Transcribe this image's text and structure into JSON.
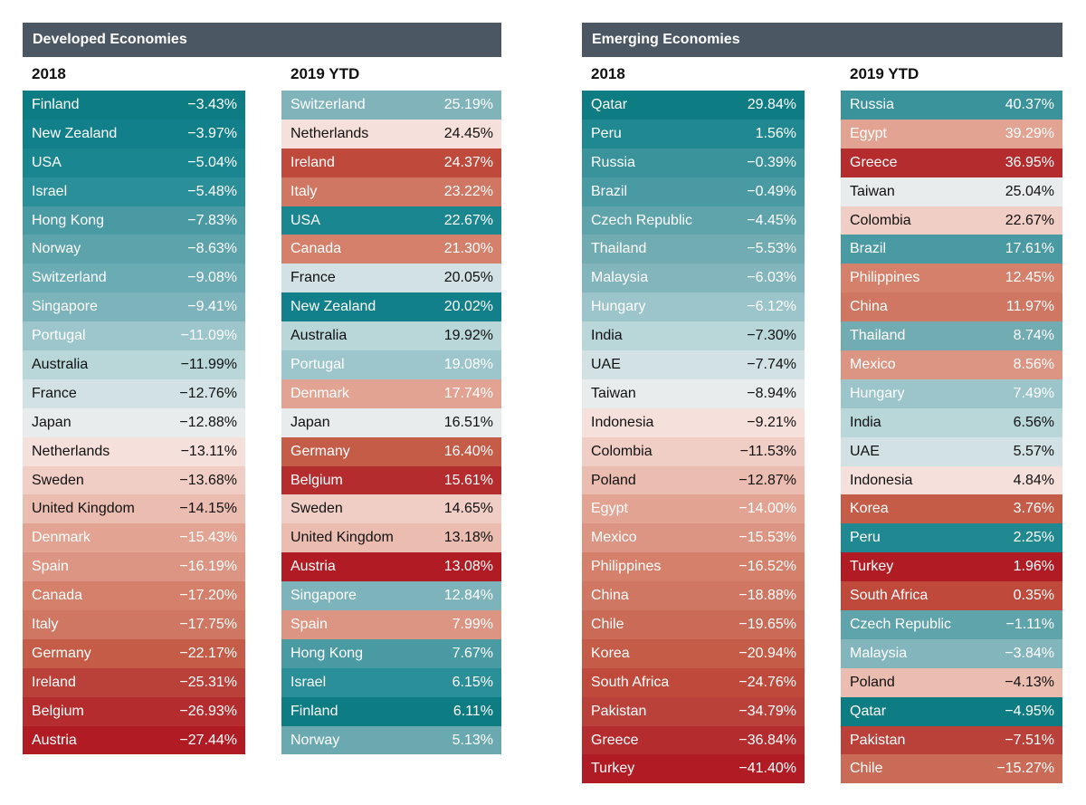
{
  "panels": [
    {
      "title": "Developed Economies",
      "tables": [
        {
          "title": "2018",
          "rows": [
            {
              "name": "Finland",
              "value": "−3.43%",
              "color": "#0e7d83",
              "text": "light"
            },
            {
              "name": "New Zealand",
              "value": "−3.97%",
              "color": "#11808a",
              "text": "light"
            },
            {
              "name": "USA",
              "value": "−5.04%",
              "color": "#1a8690",
              "text": "light"
            },
            {
              "name": "Israel",
              "value": "−5.48%",
              "color": "#2a8f99",
              "text": "light"
            },
            {
              "name": "Hong Kong",
              "value": "−7.83%",
              "color": "#4a9aa4",
              "text": "light"
            },
            {
              "name": "Norway",
              "value": "−8.63%",
              "color": "#5da3ac",
              "text": "light"
            },
            {
              "name": "Switzerland",
              "value": "−9.08%",
              "color": "#6babb3",
              "text": "light"
            },
            {
              "name": "Singapore",
              "value": "−9.41%",
              "color": "#7db3ba",
              "text": "light"
            },
            {
              "name": "Portugal",
              "value": "−11.09%",
              "color": "#9cc6cb",
              "text": "light"
            },
            {
              "name": "Australia",
              "value": "−11.99%",
              "color": "#b9d6d9",
              "text": "dark"
            },
            {
              "name": "France",
              "value": "−12.76%",
              "color": "#d2e2e4",
              "text": "dark"
            },
            {
              "name": "Japan",
              "value": "−12.88%",
              "color": "#e8eced",
              "text": "dark"
            },
            {
              "name": "Netherlands",
              "value": "−13.11%",
              "color": "#f6e0db",
              "text": "dark"
            },
            {
              "name": "Sweden",
              "value": "−13.68%",
              "color": "#f1cec5",
              "text": "dark"
            },
            {
              "name": "United Kingdom",
              "value": "−14.15%",
              "color": "#ebbdb1",
              "text": "dark"
            },
            {
              "name": "Denmark",
              "value": "−15.43%",
              "color": "#e2a392",
              "text": "light"
            },
            {
              "name": "Spain",
              "value": "−16.19%",
              "color": "#dc9582",
              "text": "light"
            },
            {
              "name": "Canada",
              "value": "−17.20%",
              "color": "#d4806b",
              "text": "light"
            },
            {
              "name": "Italy",
              "value": "−17.75%",
              "color": "#cf7762",
              "text": "light"
            },
            {
              "name": "Germany",
              "value": "−22.17%",
              "color": "#c45c47",
              "text": "light"
            },
            {
              "name": "Ireland",
              "value": "−25.31%",
              "color": "#b9413a",
              "text": "light"
            },
            {
              "name": "Belgium",
              "value": "−26.93%",
              "color": "#b42c2d",
              "text": "light"
            },
            {
              "name": "Austria",
              "value": "−27.44%",
              "color": "#b11c24",
              "text": "light"
            }
          ]
        },
        {
          "title": "2019 YTD",
          "rows": [
            {
              "name": "Switzerland",
              "value": "25.19%",
              "color": "#80b4ba",
              "text": "light"
            },
            {
              "name": "Netherlands",
              "value": "24.45%",
              "color": "#f6e0db",
              "text": "dark"
            },
            {
              "name": "Ireland",
              "value": "24.37%",
              "color": "#bf4a3c",
              "text": "light"
            },
            {
              "name": "Italy",
              "value": "23.22%",
              "color": "#cf7762",
              "text": "light"
            },
            {
              "name": "USA",
              "value": "22.67%",
              "color": "#1a8690",
              "text": "light"
            },
            {
              "name": "Canada",
              "value": "21.30%",
              "color": "#d4806b",
              "text": "light"
            },
            {
              "name": "France",
              "value": "20.05%",
              "color": "#d2e2e4",
              "text": "dark"
            },
            {
              "name": "New Zealand",
              "value": "20.02%",
              "color": "#11808a",
              "text": "light"
            },
            {
              "name": "Australia",
              "value": "19.92%",
              "color": "#b9d6d9",
              "text": "dark"
            },
            {
              "name": "Portugal",
              "value": "19.08%",
              "color": "#9cc6cb",
              "text": "light"
            },
            {
              "name": "Denmark",
              "value": "17.74%",
              "color": "#e2a392",
              "text": "light"
            },
            {
              "name": "Japan",
              "value": "16.51%",
              "color": "#e8eced",
              "text": "dark"
            },
            {
              "name": "Germany",
              "value": "16.40%",
              "color": "#c45c47",
              "text": "light"
            },
            {
              "name": "Belgium",
              "value": "15.61%",
              "color": "#b42c2d",
              "text": "light"
            },
            {
              "name": "Sweden",
              "value": "14.65%",
              "color": "#f1cec5",
              "text": "dark"
            },
            {
              "name": "United Kingdom",
              "value": "13.18%",
              "color": "#ebbdb1",
              "text": "dark"
            },
            {
              "name": "Austria",
              "value": "13.08%",
              "color": "#b11c24",
              "text": "light"
            },
            {
              "name": "Singapore",
              "value": "12.84%",
              "color": "#7db3ba",
              "text": "light"
            },
            {
              "name": "Spain",
              "value": "7.99%",
              "color": "#dc9582",
              "text": "light"
            },
            {
              "name": "Hong Kong",
              "value": "7.67%",
              "color": "#4a9aa4",
              "text": "light"
            },
            {
              "name": "Israel",
              "value": "6.15%",
              "color": "#2a8f99",
              "text": "light"
            },
            {
              "name": "Finland",
              "value": "6.11%",
              "color": "#0e7d83",
              "text": "light"
            },
            {
              "name": "Norway",
              "value": "5.13%",
              "color": "#6ba9b1",
              "text": "light"
            }
          ]
        }
      ]
    },
    {
      "title": "Emerging Economies",
      "tables": [
        {
          "title": "2018",
          "rows": [
            {
              "name": "Qatar",
              "value": "29.84%",
              "color": "#0e7d83",
              "text": "light"
            },
            {
              "name": "Peru",
              "value": "1.56%",
              "color": "#1f8891",
              "text": "light"
            },
            {
              "name": "Russia",
              "value": "−0.39%",
              "color": "#3a929b",
              "text": "light"
            },
            {
              "name": "Brazil",
              "value": "−0.49%",
              "color": "#4a9aa4",
              "text": "light"
            },
            {
              "name": "Czech Republic",
              "value": "−4.45%",
              "color": "#5fa3ab",
              "text": "light"
            },
            {
              "name": "Thailand",
              "value": "−5.53%",
              "color": "#72acb3",
              "text": "light"
            },
            {
              "name": "Malaysia",
              "value": "−6.03%",
              "color": "#83b6bc",
              "text": "light"
            },
            {
              "name": "Hungary",
              "value": "−6.12%",
              "color": "#9bc5ca",
              "text": "light"
            },
            {
              "name": "India",
              "value": "−7.30%",
              "color": "#b9d6d9",
              "text": "dark"
            },
            {
              "name": "UAE",
              "value": "−7.74%",
              "color": "#d2e2e4",
              "text": "dark"
            },
            {
              "name": "Taiwan",
              "value": "−8.94%",
              "color": "#e8eced",
              "text": "dark"
            },
            {
              "name": "Indonesia",
              "value": "−9.21%",
              "color": "#f6e0db",
              "text": "dark"
            },
            {
              "name": "Colombia",
              "value": "−11.53%",
              "color": "#f1cec5",
              "text": "dark"
            },
            {
              "name": "Poland",
              "value": "−12.87%",
              "color": "#ebbdb1",
              "text": "dark"
            },
            {
              "name": "Egypt",
              "value": "−14.00%",
              "color": "#e2a392",
              "text": "light"
            },
            {
              "name": "Mexico",
              "value": "−15.53%",
              "color": "#dc9582",
              "text": "light"
            },
            {
              "name": "Philippines",
              "value": "−16.52%",
              "color": "#d4806b",
              "text": "light"
            },
            {
              "name": "China",
              "value": "−18.88%",
              "color": "#cf7762",
              "text": "light"
            },
            {
              "name": "Chile",
              "value": "−19.65%",
              "color": "#c96b56",
              "text": "light"
            },
            {
              "name": "Korea",
              "value": "−20.94%",
              "color": "#c45c47",
              "text": "light"
            },
            {
              "name": "South Africa",
              "value": "−24.76%",
              "color": "#bf4a3c",
              "text": "light"
            },
            {
              "name": "Pakistan",
              "value": "−34.79%",
              "color": "#b9413a",
              "text": "light"
            },
            {
              "name": "Greece",
              "value": "−36.84%",
              "color": "#b42c2d",
              "text": "light"
            },
            {
              "name": "Turkey",
              "value": "−41.40%",
              "color": "#b11c24",
              "text": "light"
            }
          ]
        },
        {
          "title": "2019 YTD",
          "rows": [
            {
              "name": "Russia",
              "value": "40.37%",
              "color": "#3a929b",
              "text": "light"
            },
            {
              "name": "Egypt",
              "value": "39.29%",
              "color": "#e2a392",
              "text": "light"
            },
            {
              "name": "Greece",
              "value": "36.95%",
              "color": "#b42c2d",
              "text": "light"
            },
            {
              "name": "Taiwan",
              "value": "25.04%",
              "color": "#e8eced",
              "text": "dark"
            },
            {
              "name": "Colombia",
              "value": "22.67%",
              "color": "#f1cec5",
              "text": "dark"
            },
            {
              "name": "Brazil",
              "value": "17.61%",
              "color": "#4a9aa4",
              "text": "light"
            },
            {
              "name": "Philippines",
              "value": "12.45%",
              "color": "#d4806b",
              "text": "light"
            },
            {
              "name": "China",
              "value": "11.97%",
              "color": "#cf7762",
              "text": "light"
            },
            {
              "name": "Thailand",
              "value": "8.74%",
              "color": "#72acb3",
              "text": "light"
            },
            {
              "name": "Mexico",
              "value": "8.56%",
              "color": "#dc9582",
              "text": "light"
            },
            {
              "name": "Hungary",
              "value": "7.49%",
              "color": "#9bc5ca",
              "text": "light"
            },
            {
              "name": "India",
              "value": "6.56%",
              "color": "#b9d6d9",
              "text": "dark"
            },
            {
              "name": "UAE",
              "value": "5.57%",
              "color": "#d2e2e4",
              "text": "dark"
            },
            {
              "name": "Indonesia",
              "value": "4.84%",
              "color": "#f6e0db",
              "text": "dark"
            },
            {
              "name": "Korea",
              "value": "3.76%",
              "color": "#c45c47",
              "text": "light"
            },
            {
              "name": "Peru",
              "value": "2.25%",
              "color": "#1f8891",
              "text": "light"
            },
            {
              "name": "Turkey",
              "value": "1.96%",
              "color": "#b11c24",
              "text": "light"
            },
            {
              "name": "South Africa",
              "value": "0.35%",
              "color": "#bf4a3c",
              "text": "light"
            },
            {
              "name": "Czech Republic",
              "value": "−1.11%",
              "color": "#5fa3ab",
              "text": "light"
            },
            {
              "name": "Malaysia",
              "value": "−3.84%",
              "color": "#83b6bc",
              "text": "light"
            },
            {
              "name": "Poland",
              "value": "−4.13%",
              "color": "#ebbdb1",
              "text": "dark"
            },
            {
              "name": "Qatar",
              "value": "−4.95%",
              "color": "#0e7d83",
              "text": "light"
            },
            {
              "name": "Pakistan",
              "value": "−7.51%",
              "color": "#b9413a",
              "text": "light"
            },
            {
              "name": "Chile",
              "value": "−15.27%",
              "color": "#c96b56",
              "text": "light"
            }
          ]
        }
      ]
    }
  ],
  "chart_data": {
    "type": "table",
    "tables": [
      {
        "group": "Developed Economies",
        "period": "2018",
        "categories": [
          "Finland",
          "New Zealand",
          "USA",
          "Israel",
          "Hong Kong",
          "Norway",
          "Switzerland",
          "Singapore",
          "Portugal",
          "Australia",
          "France",
          "Japan",
          "Netherlands",
          "Sweden",
          "United Kingdom",
          "Denmark",
          "Spain",
          "Canada",
          "Italy",
          "Germany",
          "Ireland",
          "Belgium",
          "Austria"
        ],
        "values": [
          -3.43,
          -3.97,
          -5.04,
          -5.48,
          -7.83,
          -8.63,
          -9.08,
          -9.41,
          -11.09,
          -11.99,
          -12.76,
          -12.88,
          -13.11,
          -13.68,
          -14.15,
          -15.43,
          -16.19,
          -17.2,
          -17.75,
          -22.17,
          -25.31,
          -26.93,
          -27.44
        ]
      },
      {
        "group": "Developed Economies",
        "period": "2019 YTD",
        "categories": [
          "Switzerland",
          "Netherlands",
          "Ireland",
          "Italy",
          "USA",
          "Canada",
          "France",
          "New Zealand",
          "Australia",
          "Portugal",
          "Denmark",
          "Japan",
          "Germany",
          "Belgium",
          "Sweden",
          "United Kingdom",
          "Austria",
          "Singapore",
          "Spain",
          "Hong Kong",
          "Israel",
          "Finland",
          "Norway"
        ],
        "values": [
          25.19,
          24.45,
          24.37,
          23.22,
          22.67,
          21.3,
          20.05,
          20.02,
          19.92,
          19.08,
          17.74,
          16.51,
          16.4,
          15.61,
          14.65,
          13.18,
          13.08,
          12.84,
          7.99,
          7.67,
          6.15,
          6.11,
          5.13
        ]
      },
      {
        "group": "Emerging Economies",
        "period": "2018",
        "categories": [
          "Qatar",
          "Peru",
          "Russia",
          "Brazil",
          "Czech Republic",
          "Thailand",
          "Malaysia",
          "Hungary",
          "India",
          "UAE",
          "Taiwan",
          "Indonesia",
          "Colombia",
          "Poland",
          "Egypt",
          "Mexico",
          "Philippines",
          "China",
          "Chile",
          "Korea",
          "South Africa",
          "Pakistan",
          "Greece",
          "Turkey"
        ],
        "values": [
          29.84,
          1.56,
          -0.39,
          -0.49,
          -4.45,
          -5.53,
          -6.03,
          -6.12,
          -7.3,
          -7.74,
          -8.94,
          -9.21,
          -11.53,
          -12.87,
          -14.0,
          -15.53,
          -16.52,
          -18.88,
          -19.65,
          -20.94,
          -24.76,
          -34.79,
          -36.84,
          -41.4
        ]
      },
      {
        "group": "Emerging Economies",
        "period": "2019 YTD",
        "categories": [
          "Russia",
          "Egypt",
          "Greece",
          "Taiwan",
          "Colombia",
          "Brazil",
          "Philippines",
          "China",
          "Thailand",
          "Mexico",
          "Hungary",
          "India",
          "UAE",
          "Indonesia",
          "Korea",
          "Peru",
          "Turkey",
          "South Africa",
          "Czech Republic",
          "Malaysia",
          "Poland",
          "Qatar",
          "Pakistan",
          "Chile"
        ],
        "values": [
          40.37,
          39.29,
          36.95,
          25.04,
          22.67,
          17.61,
          12.45,
          11.97,
          8.74,
          8.56,
          7.49,
          6.56,
          5.57,
          4.84,
          3.76,
          2.25,
          1.96,
          0.35,
          -1.11,
          -3.84,
          -4.13,
          -4.95,
          -7.51,
          -15.27
        ]
      }
    ]
  }
}
